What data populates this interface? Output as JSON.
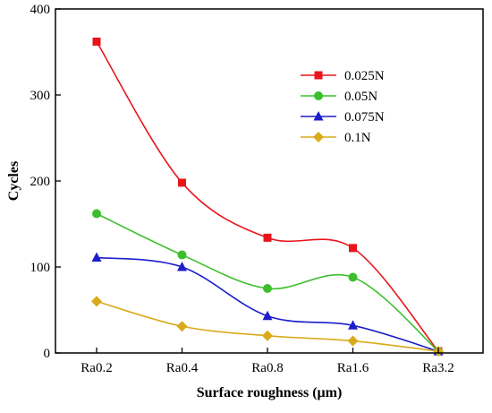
{
  "chart_data": {
    "type": "line",
    "categories": [
      "Ra0.2",
      "Ra0.4",
      "Ra0.8",
      "Ra1.6",
      "Ra3.2"
    ],
    "xlabel": "Surface roughness (μm)",
    "ylabel": "Cycles",
    "ylim": [
      0,
      400
    ],
    "yticks": [
      0,
      100,
      200,
      300,
      400
    ],
    "grid": false,
    "legend_position": "top-right",
    "series": [
      {
        "name": "0.025N",
        "values": [
          362,
          198,
          134,
          122,
          2
        ],
        "color": "#e8151b",
        "marker": "square"
      },
      {
        "name": "0.05N",
        "values": [
          162,
          114,
          75,
          88,
          2
        ],
        "color": "#3cbf2b",
        "marker": "circle"
      },
      {
        "name": "0.075N",
        "values": [
          111,
          100,
          43,
          32,
          2
        ],
        "color": "#1c1ecc",
        "marker": "triangle"
      },
      {
        "name": "0.1N",
        "values": [
          60,
          31,
          20,
          14,
          2
        ],
        "color": "#d9aa1a",
        "marker": "diamond"
      }
    ]
  }
}
